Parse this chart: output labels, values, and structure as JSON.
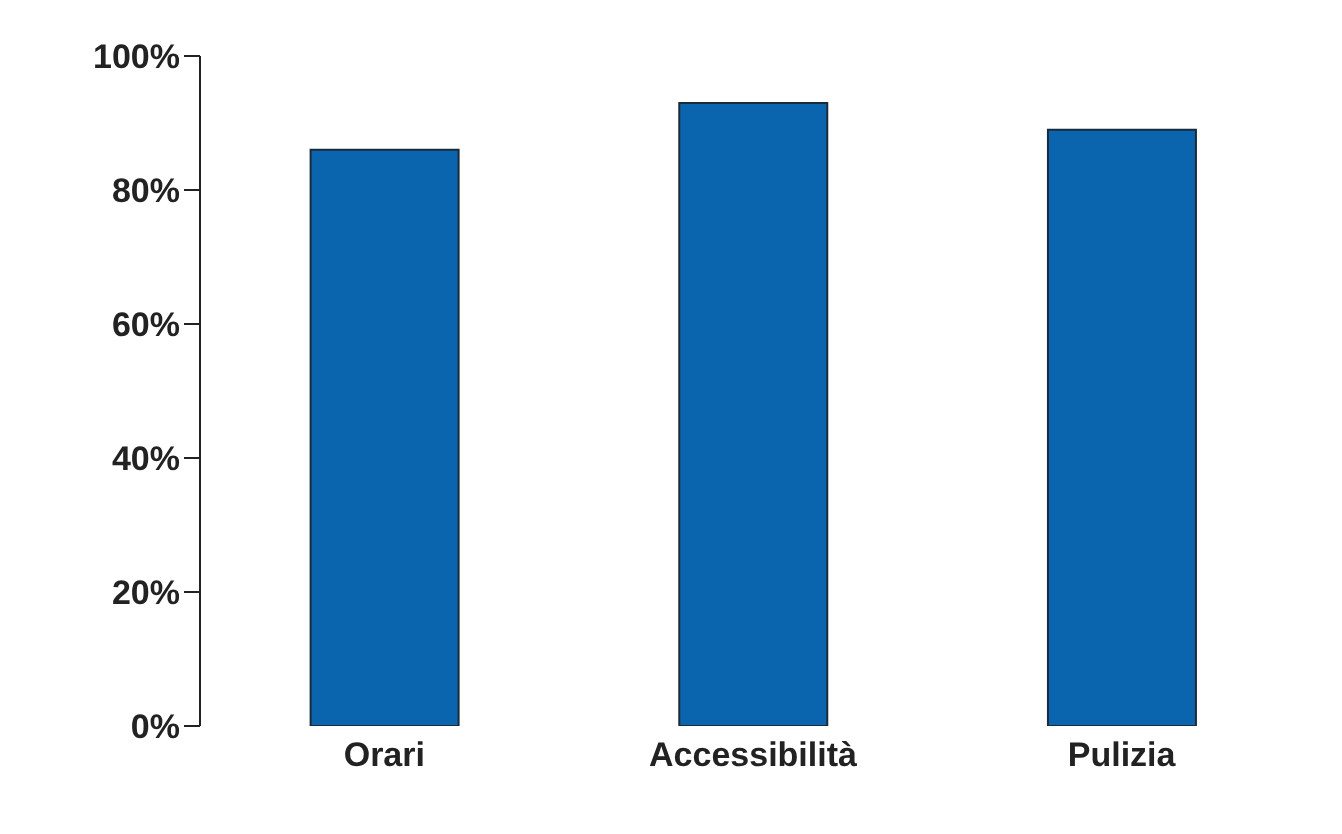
{
  "chart_data": {
    "type": "bar",
    "categories": [
      "Orari",
      "Accessibilità",
      "Pulizia"
    ],
    "values": [
      86,
      93,
      89
    ],
    "color": "#0b64ae",
    "ylim": [
      0,
      100
    ],
    "yticks": [
      {
        "value": 0,
        "label": "0%"
      },
      {
        "value": 20,
        "label": "20%"
      },
      {
        "value": 40,
        "label": "40%"
      },
      {
        "value": 60,
        "label": "60%"
      },
      {
        "value": 80,
        "label": "80%"
      },
      {
        "value": 100,
        "label": "100%"
      }
    ],
    "grid": false,
    "legend": false
  }
}
